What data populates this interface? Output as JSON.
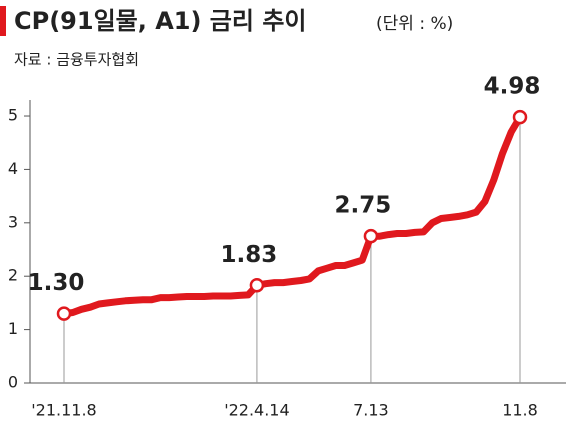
{
  "chart_data": {
    "type": "line",
    "title": "CP(91일물, A1) 금리 추이",
    "subtitle": "(단위 : %)",
    "source": "자료 : 금융투자협회",
    "categories": [
      "'21.11.8",
      null,
      null,
      null,
      null,
      null,
      null,
      null,
      null,
      null,
      null,
      null,
      null,
      null,
      null,
      null,
      null,
      null,
      null,
      null,
      null,
      null,
      "'22.4.14",
      null,
      null,
      null,
      null,
      null,
      null,
      null,
      null,
      null,
      null,
      null,
      null,
      "7.13",
      null,
      null,
      null,
      null,
      null,
      null,
      null,
      null,
      null,
      null,
      null,
      null,
      null,
      null,
      null,
      null,
      "11.8"
    ],
    "series": [
      {
        "name": "CP(91일물, A1)",
        "color": "#e0191e",
        "values": [
          1.3,
          1.32,
          1.38,
          1.42,
          1.48,
          1.5,
          1.52,
          1.54,
          1.55,
          1.56,
          1.56,
          1.6,
          1.6,
          1.61,
          1.62,
          1.62,
          1.62,
          1.63,
          1.63,
          1.63,
          1.64,
          1.65,
          1.83,
          1.86,
          1.88,
          1.88,
          1.9,
          1.92,
          1.95,
          2.1,
          2.15,
          2.2,
          2.2,
          2.25,
          2.3,
          2.75,
          2.75,
          2.78,
          2.8,
          2.8,
          2.82,
          2.83,
          3.0,
          3.08,
          3.1,
          3.12,
          3.15,
          3.2,
          3.4,
          3.8,
          4.3,
          4.7,
          4.98
        ],
        "value_labels": [
          "1.30",
          null,
          null,
          null,
          null,
          null,
          null,
          null,
          null,
          null,
          null,
          null,
          null,
          null,
          null,
          null,
          null,
          null,
          null,
          null,
          null,
          null,
          "1.83",
          null,
          null,
          null,
          null,
          null,
          null,
          null,
          null,
          null,
          null,
          null,
          null,
          "2.75",
          null,
          null,
          null,
          null,
          null,
          null,
          null,
          null,
          null,
          null,
          null,
          null,
          null,
          null,
          null,
          null,
          "4.98"
        ]
      }
    ],
    "ylim": [
      0,
      5.3
    ],
    "yticks": [
      0,
      1,
      2,
      3,
      4,
      5
    ],
    "grid": false
  }
}
